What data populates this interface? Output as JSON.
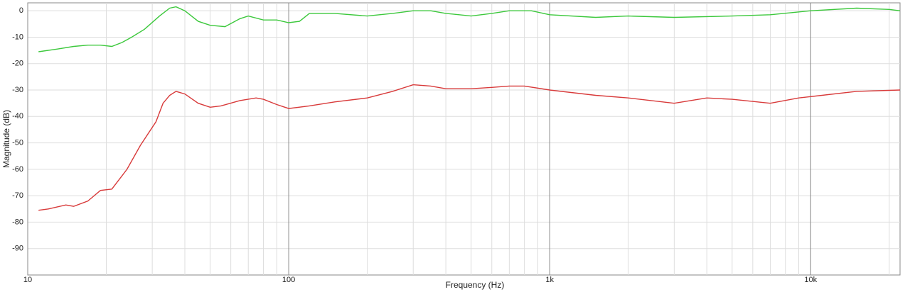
{
  "chart_data": {
    "type": "line",
    "xlabel": "Frequency (Hz)",
    "ylabel": "Magnitude (dB)",
    "xscale": "log",
    "grid": true,
    "xlim": [
      10,
      22000
    ],
    "ylim": [
      -100,
      3
    ],
    "xticks": [
      10,
      100,
      {
        "value": 1000,
        "label": "1k"
      },
      {
        "value": 10000,
        "label": "10k"
      }
    ],
    "x_minor_ticks": [
      20,
      30,
      40,
      50,
      60,
      70,
      80,
      90,
      200,
      300,
      400,
      500,
      600,
      700,
      800,
      900,
      2000,
      3000,
      4000,
      5000,
      6000,
      7000,
      8000,
      9000,
      20000
    ],
    "yticks": [
      0,
      -10,
      -20,
      -30,
      -40,
      -50,
      -60,
      -70,
      -80,
      -90
    ],
    "series": [
      {
        "color": "#3cc83c",
        "x": [
          11,
          13,
          15,
          17,
          19,
          21,
          23,
          25,
          28,
          32,
          35,
          37,
          40,
          45,
          50,
          57,
          65,
          70,
          80,
          90,
          100,
          110,
          120,
          150,
          200,
          250,
          300,
          350,
          400,
          500,
          600,
          700,
          850,
          1000,
          1500,
          2000,
          3000,
          5000,
          7000,
          10000,
          15000,
          20000,
          22000
        ],
        "values": [
          -15.5,
          -14.5,
          -13.5,
          -13,
          -13,
          -13.5,
          -12,
          -10,
          -7,
          -2,
          1,
          1.5,
          0,
          -4,
          -5.5,
          -6,
          -3,
          -2,
          -3.5,
          -3.5,
          -4.5,
          -4,
          -1,
          -1,
          -2,
          -1,
          0,
          0,
          -1,
          -2,
          -1,
          0,
          0,
          -1.5,
          -2.5,
          -2,
          -2.5,
          -2,
          -1.5,
          0,
          1,
          0.5,
          0
        ]
      },
      {
        "color": "#d83a3a",
        "x": [
          11,
          12,
          14,
          15,
          17,
          19,
          21,
          24,
          27,
          31,
          33,
          35,
          37,
          40,
          45,
          50,
          55,
          65,
          75,
          80,
          90,
          100,
          120,
          150,
          200,
          250,
          300,
          350,
          400,
          500,
          600,
          700,
          800,
          1000,
          1500,
          2000,
          3000,
          4000,
          5000,
          7000,
          9000,
          10000,
          15000,
          22000
        ],
        "values": [
          -75.5,
          -75,
          -73.5,
          -74,
          -72,
          -68,
          -67.5,
          -60,
          -51,
          -42,
          -35,
          -32,
          -30.5,
          -31.5,
          -35,
          -36.5,
          -36,
          -34,
          -33,
          -33.5,
          -35.5,
          -37,
          -36,
          -34.5,
          -33,
          -30.5,
          -28,
          -28.5,
          -29.5,
          -29.5,
          -29,
          -28.5,
          -28.5,
          -30,
          -32,
          -33,
          -35,
          -33,
          -33.5,
          -35,
          -33,
          -32.5,
          -30.5,
          -30
        ]
      }
    ]
  }
}
